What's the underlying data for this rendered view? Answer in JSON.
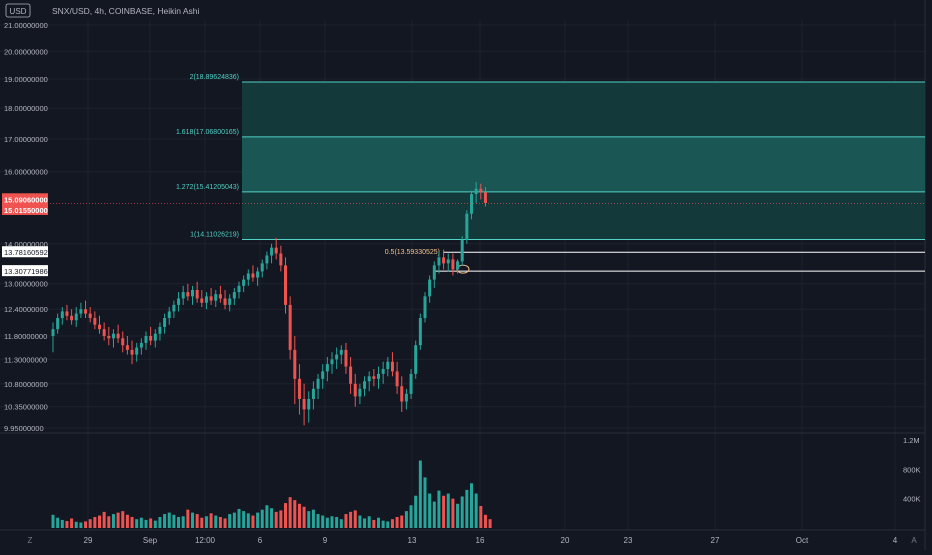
{
  "header": {
    "symbol_line": "SNX/USD, 4h, COINBASE, Heikin Ashi",
    "currency_badge": "USD"
  },
  "colors": {
    "background": "#131722",
    "grid": "#1e222d",
    "up": "#26a69a",
    "down": "#ef5350",
    "fib_line": "#4fd1c5",
    "fib_text": "#4fd1c5",
    "fib_zone_light": "#1a5a57",
    "fib_zone_dark": "#143b3c",
    "price_label_bg": "#ef5350",
    "level_label_bg": "#ffffff",
    "axis_text": "#b2b5be",
    "annotation_text": "#f5c28a"
  },
  "price_axis": {
    "labels": [
      "21.00000000",
      "20.00000000",
      "19.00000000",
      "18.00000000",
      "17.00000000",
      "16.00000000",
      "14.00000000",
      "13.00000000",
      "12.40000000",
      "11.80000000",
      "11.30000000",
      "10.80000000",
      "10.35000000",
      "9.95000000"
    ],
    "current_price_labels": [
      "15.09060000",
      "15.01550000"
    ],
    "level_labels": [
      "13.78160592",
      "13.30771986"
    ]
  },
  "volume_axis": {
    "labels": [
      "1.2M",
      "800K",
      "400K"
    ]
  },
  "time_axis": {
    "labels": [
      "29",
      "Sep",
      "12:00",
      "6",
      "9",
      "13",
      "16",
      "20",
      "23",
      "27",
      "Oct",
      "4"
    ],
    "corner_left": "Z",
    "corner_right": "A"
  },
  "fib_extension": {
    "levels": [
      {
        "ratio": "2",
        "label": "2(18.89624836)",
        "price": 18.89624836
      },
      {
        "ratio": "1.618",
        "label": "1.618(17.06800165)",
        "price": 17.06800165
      },
      {
        "ratio": "1.272",
        "label": "1.272(15.41205043)",
        "price": 15.41205043
      },
      {
        "ratio": "1",
        "label": "1(14.11026219)",
        "price": 14.11026219
      }
    ]
  },
  "fib_retracement": {
    "label": "0.5(13.59330525)",
    "levels": [
      13.78160592,
      13.30771986
    ]
  },
  "chart_data": {
    "type": "candlestick",
    "title": "SNX/USD, 4h, COINBASE, Heikin Ashi",
    "ylim": [
      9.95,
      21.0
    ],
    "y_scale": "log",
    "x_ticks": [
      "29",
      "Sep",
      "12:00",
      "6",
      "9",
      "13",
      "16",
      "20",
      "23",
      "27",
      "Oct",
      "4"
    ],
    "grid": true,
    "series": [
      {
        "name": "SNX/USD",
        "candles": [
          {
            "o": 11.8,
            "h": 12.1,
            "l": 11.45,
            "c": 11.95
          },
          {
            "o": 11.95,
            "h": 12.3,
            "l": 11.85,
            "c": 12.2
          },
          {
            "o": 12.2,
            "h": 12.45,
            "l": 12.05,
            "c": 12.35
          },
          {
            "o": 12.35,
            "h": 12.5,
            "l": 12.15,
            "c": 12.25
          },
          {
            "o": 12.25,
            "h": 12.4,
            "l": 12.05,
            "c": 12.15
          },
          {
            "o": 12.15,
            "h": 12.45,
            "l": 12.0,
            "c": 12.3
          },
          {
            "o": 12.3,
            "h": 12.55,
            "l": 12.2,
            "c": 12.4
          },
          {
            "o": 12.4,
            "h": 12.6,
            "l": 12.2,
            "c": 12.3
          },
          {
            "o": 12.3,
            "h": 12.45,
            "l": 12.1,
            "c": 12.2
          },
          {
            "o": 12.2,
            "h": 12.35,
            "l": 11.95,
            "c": 12.05
          },
          {
            "o": 12.05,
            "h": 12.25,
            "l": 11.85,
            "c": 11.95
          },
          {
            "o": 11.95,
            "h": 12.1,
            "l": 11.7,
            "c": 11.8
          },
          {
            "o": 11.8,
            "h": 12.0,
            "l": 11.6,
            "c": 11.75
          },
          {
            "o": 11.75,
            "h": 11.95,
            "l": 11.55,
            "c": 11.85
          },
          {
            "o": 11.85,
            "h": 12.05,
            "l": 11.65,
            "c": 11.75
          },
          {
            "o": 11.75,
            "h": 11.9,
            "l": 11.45,
            "c": 11.6
          },
          {
            "o": 11.6,
            "h": 11.8,
            "l": 11.4,
            "c": 11.5
          },
          {
            "o": 11.5,
            "h": 11.7,
            "l": 11.2,
            "c": 11.4
          },
          {
            "o": 11.4,
            "h": 11.65,
            "l": 11.25,
            "c": 11.55
          },
          {
            "o": 11.55,
            "h": 11.75,
            "l": 11.4,
            "c": 11.65
          },
          {
            "o": 11.65,
            "h": 11.9,
            "l": 11.5,
            "c": 11.8
          },
          {
            "o": 11.8,
            "h": 12.0,
            "l": 11.6,
            "c": 11.7
          },
          {
            "o": 11.7,
            "h": 11.95,
            "l": 11.55,
            "c": 11.85
          },
          {
            "o": 11.85,
            "h": 12.1,
            "l": 11.7,
            "c": 12.0
          },
          {
            "o": 12.0,
            "h": 12.3,
            "l": 11.85,
            "c": 12.2
          },
          {
            "o": 12.2,
            "h": 12.45,
            "l": 12.05,
            "c": 12.35
          },
          {
            "o": 12.35,
            "h": 12.6,
            "l": 12.2,
            "c": 12.5
          },
          {
            "o": 12.5,
            "h": 12.8,
            "l": 12.35,
            "c": 12.65
          },
          {
            "o": 12.65,
            "h": 12.95,
            "l": 12.5,
            "c": 12.8
          },
          {
            "o": 12.8,
            "h": 13.0,
            "l": 12.6,
            "c": 12.7
          },
          {
            "o": 12.7,
            "h": 12.95,
            "l": 12.5,
            "c": 12.85
          },
          {
            "o": 12.85,
            "h": 13.05,
            "l": 12.55,
            "c": 12.65
          },
          {
            "o": 12.65,
            "h": 12.85,
            "l": 12.45,
            "c": 12.55
          },
          {
            "o": 12.55,
            "h": 12.8,
            "l": 12.4,
            "c": 12.7
          },
          {
            "o": 12.7,
            "h": 12.9,
            "l": 12.5,
            "c": 12.6
          },
          {
            "o": 12.6,
            "h": 12.85,
            "l": 12.45,
            "c": 12.75
          },
          {
            "o": 12.75,
            "h": 12.95,
            "l": 12.55,
            "c": 12.65
          },
          {
            "o": 12.65,
            "h": 12.85,
            "l": 12.4,
            "c": 12.5
          },
          {
            "o": 12.5,
            "h": 12.75,
            "l": 12.35,
            "c": 12.65
          },
          {
            "o": 12.65,
            "h": 12.9,
            "l": 12.5,
            "c": 12.8
          },
          {
            "o": 12.8,
            "h": 13.05,
            "l": 12.65,
            "c": 12.95
          },
          {
            "o": 12.95,
            "h": 13.2,
            "l": 12.8,
            "c": 13.1
          },
          {
            "o": 13.1,
            "h": 13.35,
            "l": 12.95,
            "c": 13.25
          },
          {
            "o": 13.25,
            "h": 13.45,
            "l": 13.05,
            "c": 13.15
          },
          {
            "o": 13.15,
            "h": 13.4,
            "l": 12.95,
            "c": 13.3
          },
          {
            "o": 13.3,
            "h": 13.6,
            "l": 13.15,
            "c": 13.5
          },
          {
            "o": 13.5,
            "h": 13.8,
            "l": 13.35,
            "c": 13.7
          },
          {
            "o": 13.7,
            "h": 14.0,
            "l": 13.5,
            "c": 13.9
          },
          {
            "o": 13.9,
            "h": 14.15,
            "l": 13.6,
            "c": 13.75
          },
          {
            "o": 13.75,
            "h": 13.95,
            "l": 13.3,
            "c": 13.45
          },
          {
            "o": 13.45,
            "h": 13.65,
            "l": 12.3,
            "c": 12.5
          },
          {
            "o": 12.5,
            "h": 12.7,
            "l": 11.3,
            "c": 11.5
          },
          {
            "o": 11.5,
            "h": 11.8,
            "l": 10.4,
            "c": 10.9
          },
          {
            "o": 10.9,
            "h": 11.2,
            "l": 10.2,
            "c": 10.5
          },
          {
            "o": 10.5,
            "h": 10.8,
            "l": 10.0,
            "c": 10.3
          },
          {
            "o": 10.3,
            "h": 10.65,
            "l": 10.05,
            "c": 10.5
          },
          {
            "o": 10.5,
            "h": 10.85,
            "l": 10.3,
            "c": 10.7
          },
          {
            "o": 10.7,
            "h": 11.0,
            "l": 10.5,
            "c": 10.9
          },
          {
            "o": 10.9,
            "h": 11.2,
            "l": 10.7,
            "c": 11.05
          },
          {
            "o": 11.05,
            "h": 11.35,
            "l": 10.85,
            "c": 11.2
          },
          {
            "o": 11.2,
            "h": 11.45,
            "l": 11.0,
            "c": 11.3
          },
          {
            "o": 11.3,
            "h": 11.55,
            "l": 11.1,
            "c": 11.4
          },
          {
            "o": 11.4,
            "h": 11.6,
            "l": 11.2,
            "c": 11.5
          },
          {
            "o": 11.5,
            "h": 11.65,
            "l": 11.0,
            "c": 11.15
          },
          {
            "o": 11.15,
            "h": 11.35,
            "l": 10.6,
            "c": 10.8
          },
          {
            "o": 10.8,
            "h": 11.0,
            "l": 10.35,
            "c": 10.55
          },
          {
            "o": 10.55,
            "h": 10.8,
            "l": 10.4,
            "c": 10.7
          },
          {
            "o": 10.7,
            "h": 10.95,
            "l": 10.55,
            "c": 10.85
          },
          {
            "o": 10.85,
            "h": 11.05,
            "l": 10.65,
            "c": 10.95
          },
          {
            "o": 10.95,
            "h": 11.1,
            "l": 10.75,
            "c": 10.9
          },
          {
            "o": 10.9,
            "h": 11.15,
            "l": 10.7,
            "c": 11.0
          },
          {
            "o": 11.0,
            "h": 11.25,
            "l": 10.8,
            "c": 11.1
          },
          {
            "o": 11.1,
            "h": 11.35,
            "l": 10.95,
            "c": 11.25
          },
          {
            "o": 11.25,
            "h": 11.45,
            "l": 10.95,
            "c": 11.05
          },
          {
            "o": 11.05,
            "h": 11.25,
            "l": 10.6,
            "c": 10.75
          },
          {
            "o": 10.75,
            "h": 10.95,
            "l": 10.25,
            "c": 10.45
          },
          {
            "o": 10.45,
            "h": 10.7,
            "l": 10.3,
            "c": 10.6
          },
          {
            "o": 10.6,
            "h": 11.1,
            "l": 10.5,
            "c": 11.0
          },
          {
            "o": 11.0,
            "h": 11.7,
            "l": 10.9,
            "c": 11.6
          },
          {
            "o": 11.6,
            "h": 12.3,
            "l": 11.5,
            "c": 12.2
          },
          {
            "o": 12.2,
            "h": 12.8,
            "l": 12.1,
            "c": 12.7
          },
          {
            "o": 12.7,
            "h": 13.2,
            "l": 12.55,
            "c": 13.1
          },
          {
            "o": 13.1,
            "h": 13.55,
            "l": 12.9,
            "c": 13.45
          },
          {
            "o": 13.45,
            "h": 13.8,
            "l": 13.25,
            "c": 13.65
          },
          {
            "o": 13.65,
            "h": 13.85,
            "l": 13.35,
            "c": 13.5
          },
          {
            "o": 13.5,
            "h": 13.75,
            "l": 13.3,
            "c": 13.6
          },
          {
            "o": 13.6,
            "h": 13.75,
            "l": 13.2,
            "c": 13.35
          },
          {
            "o": 13.35,
            "h": 13.6,
            "l": 13.25,
            "c": 13.55
          },
          {
            "o": 13.55,
            "h": 14.2,
            "l": 13.45,
            "c": 14.1
          },
          {
            "o": 14.1,
            "h": 14.9,
            "l": 14.0,
            "c": 14.8
          },
          {
            "o": 14.8,
            "h": 15.45,
            "l": 14.65,
            "c": 15.35
          },
          {
            "o": 15.35,
            "h": 15.7,
            "l": 15.1,
            "c": 15.5
          },
          {
            "o": 15.5,
            "h": 15.65,
            "l": 15.2,
            "c": 15.4
          },
          {
            "o": 15.4,
            "h": 15.55,
            "l": 15.0,
            "c": 15.1
          }
        ]
      },
      {
        "name": "Volume",
        "values": [
          180,
          140,
          110,
          95,
          130,
          85,
          75,
          90,
          120,
          150,
          170,
          220,
          160,
          190,
          210,
          230,
          180,
          150,
          120,
          140,
          110,
          130,
          100,
          150,
          190,
          210,
          180,
          150,
          160,
          250,
          210,
          190,
          140,
          160,
          200,
          170,
          150,
          130,
          190,
          210,
          260,
          230,
          200,
          170,
          210,
          250,
          310,
          270,
          220,
          240,
          340,
          420,
          380,
          330,
          290,
          230,
          250,
          190,
          170,
          140,
          160,
          150,
          120,
          190,
          220,
          240,
          170,
          130,
          160,
          110,
          140,
          100,
          90,
          120,
          150,
          170,
          230,
          310,
          440,
          920,
          690,
          470,
          360,
          510,
          440,
          470,
          400,
          330,
          430,
          520,
          610,
          470,
          300,
          180,
          120
        ]
      }
    ]
  }
}
